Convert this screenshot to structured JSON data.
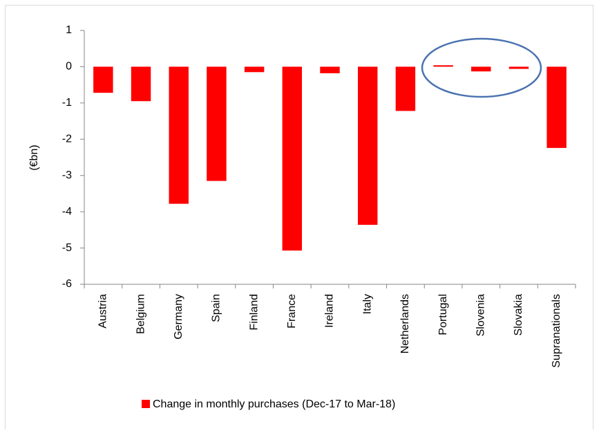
{
  "chart_data": {
    "type": "bar",
    "y_label": "(€bn)",
    "categories": [
      "Austria",
      "Belgium",
      "Germany",
      "Spain",
      "Finland",
      "France",
      "Ireland",
      "Italy",
      "Netherlands",
      "Portugal",
      "Slovenia",
      "Slovakia",
      "Supranationals"
    ],
    "series": [
      {
        "name": "Change in monthly purchases (Dec-17 to Mar-18)",
        "color": "#ff0000",
        "values": [
          -0.72,
          -0.95,
          -3.78,
          -3.15,
          -0.15,
          -5.07,
          -0.18,
          -4.36,
          -1.22,
          0.04,
          -0.13,
          -0.06,
          -2.24
        ]
      }
    ],
    "ylim": [
      -6,
      1
    ],
    "yticks": [
      -6,
      -5,
      -4,
      -3,
      -2,
      -1,
      0,
      1
    ],
    "grid": false,
    "legend": "bottom"
  }
}
